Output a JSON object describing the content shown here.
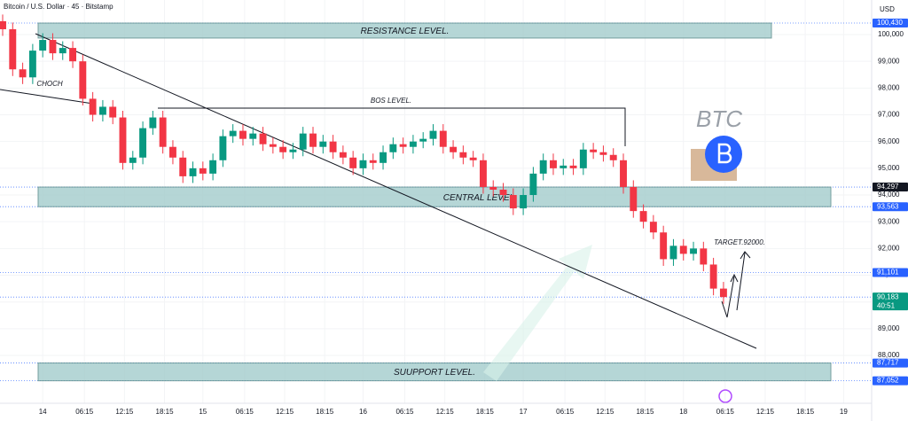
{
  "header": {
    "symbol": "Bitcoin / U.S. Dollar · 45 · Bitstamp",
    "currency": "USD"
  },
  "chart_data": {
    "type": "candlestick",
    "x": [
      -6,
      -4.5,
      -3,
      -1.5,
      0,
      1.5,
      3,
      4.5,
      6,
      7.5,
      9,
      10.5,
      12,
      13.5,
      15,
      16.5,
      18,
      19.5,
      21,
      22.5,
      24,
      25.5,
      27,
      28.5,
      30,
      31.5,
      33,
      34.5,
      36,
      37.5,
      39,
      40.5,
      42,
      43.5,
      45,
      46.5,
      48,
      49.5,
      51,
      52.5,
      54,
      55.5,
      57,
      58.5,
      60,
      61.5,
      63,
      64.5,
      66,
      67.5,
      69,
      70.5,
      72,
      73.5,
      75,
      76.5,
      78,
      79.5,
      81,
      82.5,
      84,
      85.5,
      87,
      88.5,
      90,
      91.5,
      93,
      94.5,
      96,
      97.5,
      99,
      100.5,
      102
    ],
    "open": [
      100500,
      100200,
      98700,
      98400,
      99400,
      99800,
      99300,
      99500,
      99000,
      97600,
      97000,
      97300,
      96900,
      95200,
      95400,
      96500,
      96900,
      95800,
      95400,
      94700,
      95000,
      94800,
      95300,
      96200,
      96400,
      96100,
      96300,
      95900,
      95800,
      95600,
      95700,
      96300,
      95800,
      96000,
      95600,
      95400,
      95000,
      95300,
      95200,
      95600,
      95900,
      95800,
      96000,
      96100,
      96400,
      95800,
      95600,
      95400,
      95300,
      94300,
      94200,
      94000,
      93500,
      94000,
      94800,
      95300,
      95000,
      95100,
      95000,
      95700,
      95600,
      95500,
      95300,
      94300,
      93400,
      93000,
      92600,
      91600,
      92100,
      91800,
      92000,
      91400,
      90500
    ],
    "high": [
      100750,
      100450,
      98950,
      99650,
      100050,
      100050,
      99750,
      99750,
      99250,
      97850,
      97550,
      97550,
      97150,
      95650,
      96750,
      97150,
      97150,
      96050,
      95650,
      95250,
      95250,
      95550,
      96450,
      96650,
      96650,
      96550,
      96550,
      96150,
      96050,
      95950,
      96550,
      96550,
      96250,
      96250,
      95850,
      95650,
      95550,
      95550,
      95850,
      96150,
      96150,
      96250,
      96350,
      96650,
      96650,
      96050,
      95850,
      95650,
      95550,
      94550,
      94450,
      94250,
      94250,
      95050,
      95550,
      95550,
      95350,
      95350,
      95950,
      95950,
      95850,
      95750,
      95550,
      94550,
      93650,
      93250,
      92850,
      92350,
      92350,
      92250,
      92250,
      91650,
      90750
    ],
    "low": [
      99950,
      98450,
      98150,
      98150,
      99150,
      99050,
      99050,
      98750,
      97350,
      96750,
      96750,
      96650,
      94950,
      94950,
      95150,
      96250,
      95550,
      95150,
      94450,
      94450,
      94550,
      94550,
      95050,
      95950,
      95850,
      95850,
      95650,
      95550,
      95350,
      95350,
      95450,
      95550,
      95550,
      95350,
      95150,
      94750,
      94750,
      94950,
      94950,
      95350,
      95550,
      95550,
      95750,
      95850,
      95550,
      95350,
      95150,
      95050,
      94050,
      93950,
      93750,
      93250,
      93250,
      93750,
      94550,
      94750,
      94750,
      94750,
      94750,
      95350,
      95250,
      95050,
      94050,
      93150,
      92750,
      92350,
      91350,
      91350,
      91550,
      91550,
      91150,
      90250,
      89933
    ],
    "close": [
      100200,
      98700,
      98400,
      99400,
      99800,
      99300,
      99500,
      99000,
      97600,
      97000,
      97300,
      96900,
      95200,
      95400,
      96500,
      96900,
      95800,
      95400,
      94700,
      95000,
      94800,
      95300,
      96200,
      96400,
      96100,
      96300,
      95900,
      95800,
      95600,
      95700,
      96300,
      95800,
      96000,
      95600,
      95400,
      95000,
      95300,
      95200,
      95600,
      95900,
      95800,
      96000,
      96100,
      96400,
      95800,
      95600,
      95400,
      95300,
      94300,
      94200,
      94000,
      93500,
      94000,
      94800,
      95300,
      95000,
      95100,
      95000,
      95700,
      95600,
      95500,
      95300,
      94300,
      93400,
      93000,
      92600,
      91600,
      92100,
      91800,
      92000,
      91400,
      90500,
      90183
    ],
    "up_color": "#089981",
    "down_color": "#f23645",
    "xlim": [
      -6.4,
      124.2
    ],
    "xticks": [
      {
        "value": 0,
        "label": "14"
      },
      {
        "value": 6.25,
        "label": "06:15"
      },
      {
        "value": 12.25,
        "label": "12:15"
      },
      {
        "value": 18.25,
        "label": "18:15"
      },
      {
        "value": 24,
        "label": "15"
      },
      {
        "value": 30.25,
        "label": "06:15"
      },
      {
        "value": 36.25,
        "label": "12:15"
      },
      {
        "value": 42.25,
        "label": "18:15"
      },
      {
        "value": 48,
        "label": "16"
      },
      {
        "value": 54.25,
        "label": "06:15"
      },
      {
        "value": 60.25,
        "label": "12:15"
      },
      {
        "value": 66.25,
        "label": "18:15"
      },
      {
        "value": 72,
        "label": "17"
      },
      {
        "value": 78.25,
        "label": "06:15"
      },
      {
        "value": 84.25,
        "label": "12:15"
      },
      {
        "value": 90.25,
        "label": "18:15"
      },
      {
        "value": 96,
        "label": "18"
      },
      {
        "value": 102.25,
        "label": "06:15"
      },
      {
        "value": 108.25,
        "label": "12:15"
      },
      {
        "value": 114.25,
        "label": "18:15"
      },
      {
        "value": 120,
        "label": "19"
      }
    ],
    "ylim": [
      86211,
      101293
    ],
    "yticks": [
      {
        "value": 88000,
        "label": "88,000"
      },
      {
        "value": 89000,
        "label": "89,000"
      },
      {
        "value": 90000,
        "label": "90,000"
      },
      {
        "value": 91000,
        "label": "91,000"
      },
      {
        "value": 92000,
        "label": "92,000"
      },
      {
        "value": 93000,
        "label": "93,000"
      },
      {
        "value": 94000,
        "label": "94,000"
      },
      {
        "value": 95000,
        "label": "95,000"
      },
      {
        "value": 96000,
        "label": "96,000"
      },
      {
        "value": 97000,
        "label": "97,000"
      },
      {
        "value": 98000,
        "label": "98,000"
      },
      {
        "value": 99000,
        "label": "99,000"
      },
      {
        "value": 100000,
        "label": "100,000"
      }
    ],
    "price_markers": [
      {
        "value": 100430,
        "label": "100,430",
        "color": "#2962ff"
      },
      {
        "value": 94297,
        "label": "94,297",
        "color": "#131722"
      },
      {
        "value": 93563,
        "label": "93,563",
        "color": "#2962ff"
      },
      {
        "value": 91101,
        "label": "91,101",
        "color": "#2962ff"
      },
      {
        "value": 90183,
        "label": "90,183",
        "countdown": "40:51",
        "color": "#089981"
      },
      {
        "value": 87717,
        "label": "87,717",
        "color": "#2962ff"
      },
      {
        "value": 87052,
        "label": "87,052",
        "color": "#2962ff"
      }
    ],
    "zones": [
      {
        "label": "RESISTANCE LEVEL.",
        "top": 100430,
        "bottom": 99870
      },
      {
        "label": "CENTRAL LEVEL",
        "top": 94297,
        "bottom": 93563
      },
      {
        "label": "SUUPPORT  LEVEL.",
        "top": 87717,
        "bottom": 87052
      }
    ],
    "annotations": {
      "choch": "CHOCH",
      "bos": "BOS LEVEL.",
      "target": "TARGET.92000.",
      "asset": "BTC"
    }
  }
}
